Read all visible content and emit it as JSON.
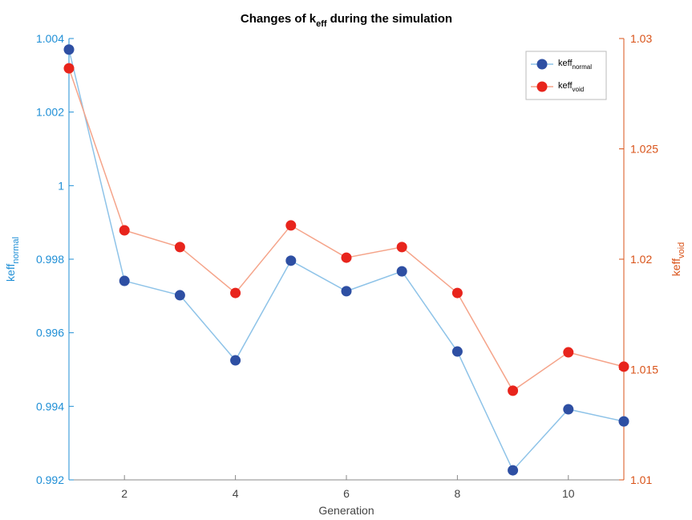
{
  "chart_data": {
    "type": "line",
    "title": [
      "Changes of k",
      "eff",
      "during the simulation"
    ],
    "xlabel": "Generation",
    "ylabel": "keff",
    "ylabel_sub": "normal",
    "y2label": "keff",
    "y2label_sub": "void",
    "x": [
      1,
      2,
      3,
      4,
      5,
      6,
      7,
      8,
      9,
      10,
      11
    ],
    "xlim": [
      1,
      11
    ],
    "xticks": [
      2,
      4,
      6,
      8,
      10
    ],
    "ylim": [
      0.992,
      1.004
    ],
    "yticks": [
      0.992,
      0.994,
      0.996,
      0.998,
      1,
      1.002,
      1.004
    ],
    "y2lim": [
      1.01,
      1.03
    ],
    "y2ticks": [
      1.01,
      1.015,
      1.02,
      1.025,
      1.03
    ],
    "ycolor": "#1f8fd6",
    "y2color": "#d95319",
    "legend": "upper right",
    "series": [
      {
        "name": "keff",
        "subscript": "normal",
        "color": "#2e4fa3",
        "line_color": "#8ec3e8",
        "values": [
          1.0037,
          0.99741,
          0.99702,
          0.99525,
          0.99796,
          0.99713,
          0.99767,
          0.99549,
          0.99226,
          0.99392,
          0.99359
        ]
      },
      {
        "name": "keff",
        "subscript": "void",
        "color": "#e8241c",
        "line_color": "#f5a48a",
        "axis": "y2",
        "values": [
          1.02865,
          1.02131,
          1.02055,
          1.01847,
          1.02153,
          1.02007,
          1.02055,
          1.01847,
          1.01404,
          1.01578,
          1.01513
        ]
      }
    ]
  }
}
